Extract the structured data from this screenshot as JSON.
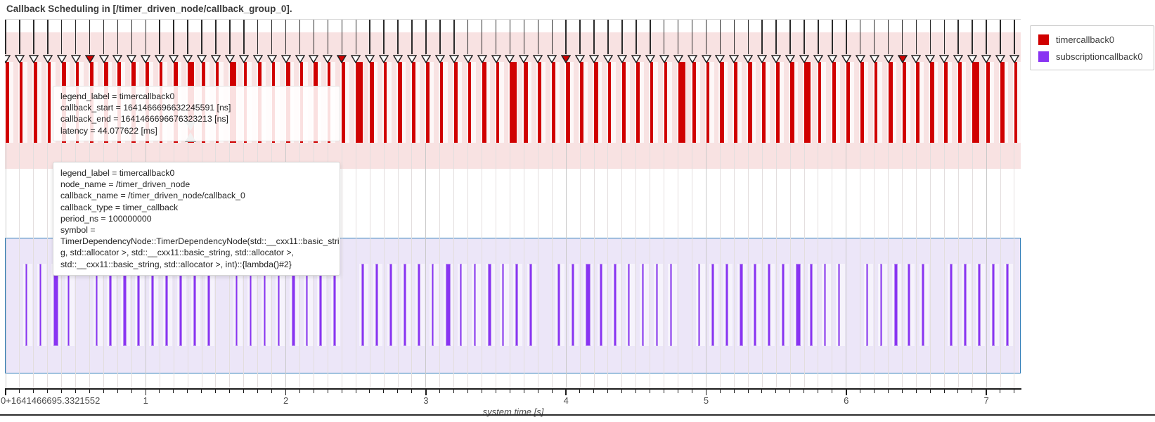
{
  "title": "Callback Scheduling in [/timer_driven_node/callback_group_0].",
  "legend": {
    "items": [
      {
        "label": "timercallback0",
        "color": "#d00000"
      },
      {
        "label": "subscriptioncallback0",
        "color": "#8934f2"
      }
    ]
  },
  "tooltips": {
    "latency": {
      "lines": [
        "legend_label = timercallback0",
        "callback_start = 1641466696632245591 [ns]",
        "callback_end = 1641466696676323213 [ns]",
        "latency = 44.077622 [ms]"
      ]
    },
    "info": {
      "lines": [
        "legend_label = timercallback0",
        "node_name = /timer_driven_node",
        "callback_name = /timer_driven_node/callback_0",
        "callback_type = timer_callback",
        "period_ns = 100000000",
        "symbol =",
        "TimerDependencyNode::TimerDependencyNode(std::__cxx11::basic_strin",
        "g, std::allocator >, std::__cxx11::basic_string, std::allocator >,",
        "std::__cxx11::basic_string, std::allocator >, int)::{lambda()#2}"
      ]
    }
  },
  "chart_data": {
    "type": "bar",
    "subtype": "callback-scheduling-timeline",
    "title": "Callback Scheduling in [/timer_driven_node/callback_group_0].",
    "xlabel": "system time [s]",
    "x_offset_tick_label": "0+1641466695.3321552",
    "x_major_ticks": [
      1,
      2,
      3,
      4,
      5,
      6,
      7
    ],
    "x_range": [
      0,
      7.25
    ],
    "minor_tick_interval_s": 0.1,
    "grid": true,
    "legend_position": "top-right-outside",
    "colors": {
      "timer_bar": "#d00000",
      "timer_band_bg": "#f8e2e2",
      "subscription_bar": "#8934f2",
      "subscription_bar_edge": "#b98df2",
      "subscription_band_bg": "#ece6f8",
      "subscription_band_border": "#2e7cb8",
      "arrow_outline": "#222222",
      "arrow_fill": "#ffffff",
      "arrow_fill_red": "#d00000",
      "hover_anchor": "#8f8f8f"
    },
    "timer_markers": {
      "period_s": 0.1,
      "t_first": 0,
      "t_last": 7.3,
      "red_times": [
        0.6,
        2.4,
        4.0,
        6.4
      ]
    },
    "hover": {
      "t": 1.3,
      "latency_ms": 44.077622
    },
    "series": [
      {
        "name": "timercallback0",
        "row": "top",
        "bars": [
          [
            0.0,
            26
          ],
          [
            0.1,
            22
          ],
          [
            0.2,
            28
          ],
          [
            0.3,
            20
          ],
          [
            0.4,
            30
          ],
          [
            0.5,
            24
          ],
          [
            0.6,
            26
          ],
          [
            0.7,
            32
          ],
          [
            0.8,
            22
          ],
          [
            0.9,
            28
          ],
          [
            1.0,
            24
          ],
          [
            1.1,
            20
          ],
          [
            1.2,
            30
          ],
          [
            1.3,
            44
          ],
          [
            1.4,
            24
          ],
          [
            1.5,
            20
          ],
          [
            1.6,
            46
          ],
          [
            1.7,
            22
          ],
          [
            1.8,
            28
          ],
          [
            1.9,
            24
          ],
          [
            2.0,
            30
          ],
          [
            2.1,
            22
          ],
          [
            2.2,
            26
          ],
          [
            2.3,
            20
          ],
          [
            2.4,
            24
          ],
          [
            2.5,
            50
          ],
          [
            2.6,
            28
          ],
          [
            2.7,
            22
          ],
          [
            2.8,
            30
          ],
          [
            2.9,
            24
          ],
          [
            3.0,
            26
          ],
          [
            3.1,
            22
          ],
          [
            3.2,
            28
          ],
          [
            3.3,
            24
          ],
          [
            3.4,
            30
          ],
          [
            3.5,
            22
          ],
          [
            3.6,
            46
          ],
          [
            3.7,
            28
          ],
          [
            3.8,
            24
          ],
          [
            3.9,
            22
          ],
          [
            4.0,
            28
          ],
          [
            4.1,
            24
          ],
          [
            4.2,
            30
          ],
          [
            4.3,
            22
          ],
          [
            4.4,
            26
          ],
          [
            4.5,
            28
          ],
          [
            4.6,
            22
          ],
          [
            4.7,
            24
          ],
          [
            4.8,
            52
          ],
          [
            4.9,
            26
          ],
          [
            5.0,
            22
          ],
          [
            5.1,
            28
          ],
          [
            5.2,
            24
          ],
          [
            5.3,
            30
          ],
          [
            5.4,
            22
          ],
          [
            5.5,
            26
          ],
          [
            5.6,
            28
          ],
          [
            5.7,
            45
          ],
          [
            5.8,
            22
          ],
          [
            5.9,
            26
          ],
          [
            6.0,
            24
          ],
          [
            6.1,
            28
          ],
          [
            6.2,
            22
          ],
          [
            6.3,
            30
          ],
          [
            6.4,
            26
          ],
          [
            6.5,
            22
          ],
          [
            6.6,
            28
          ],
          [
            6.7,
            24
          ],
          [
            6.8,
            26
          ],
          [
            6.9,
            50
          ],
          [
            7.0,
            24
          ],
          [
            7.1,
            28
          ],
          [
            7.2,
            22
          ]
        ]
      },
      {
        "name": "subscriptioncallback0",
        "row": "bottom",
        "bars": [
          [
            0.14,
            18
          ],
          [
            0.24,
            18
          ],
          [
            0.34,
            36
          ],
          [
            0.44,
            18
          ],
          [
            0.64,
            18
          ],
          [
            0.74,
            18
          ],
          [
            0.84,
            25
          ],
          [
            0.94,
            18
          ],
          [
            1.04,
            18
          ],
          [
            1.14,
            18
          ],
          [
            1.24,
            18
          ],
          [
            1.34,
            18
          ],
          [
            1.44,
            18
          ],
          [
            1.64,
            18
          ],
          [
            1.74,
            18
          ],
          [
            1.84,
            18
          ],
          [
            1.94,
            18
          ],
          [
            2.04,
            25
          ],
          [
            2.14,
            18
          ],
          [
            2.24,
            18
          ],
          [
            2.34,
            18
          ],
          [
            2.54,
            18
          ],
          [
            2.64,
            18
          ],
          [
            2.74,
            18
          ],
          [
            2.84,
            18
          ],
          [
            2.94,
            18
          ],
          [
            3.04,
            18
          ],
          [
            3.14,
            36
          ],
          [
            3.24,
            18
          ],
          [
            3.34,
            18
          ],
          [
            3.44,
            25
          ],
          [
            3.54,
            18
          ],
          [
            3.64,
            18
          ],
          [
            3.74,
            18
          ],
          [
            3.94,
            18
          ],
          [
            4.04,
            18
          ],
          [
            4.14,
            36
          ],
          [
            4.24,
            18
          ],
          [
            4.34,
            18
          ],
          [
            4.44,
            18
          ],
          [
            4.54,
            18
          ],
          [
            4.64,
            18
          ],
          [
            4.74,
            18
          ],
          [
            4.94,
            18
          ],
          [
            5.04,
            18
          ],
          [
            5.14,
            18
          ],
          [
            5.24,
            25
          ],
          [
            5.34,
            18
          ],
          [
            5.44,
            18
          ],
          [
            5.54,
            18
          ],
          [
            5.64,
            36
          ],
          [
            5.74,
            18
          ],
          [
            5.84,
            18
          ],
          [
            5.94,
            18
          ],
          [
            6.14,
            18
          ],
          [
            6.24,
            18
          ],
          [
            6.34,
            25
          ],
          [
            6.44,
            18
          ],
          [
            6.54,
            18
          ],
          [
            6.74,
            18
          ],
          [
            6.84,
            18
          ],
          [
            6.94,
            18
          ],
          [
            7.04,
            18
          ],
          [
            7.14,
            18
          ]
        ]
      }
    ]
  }
}
